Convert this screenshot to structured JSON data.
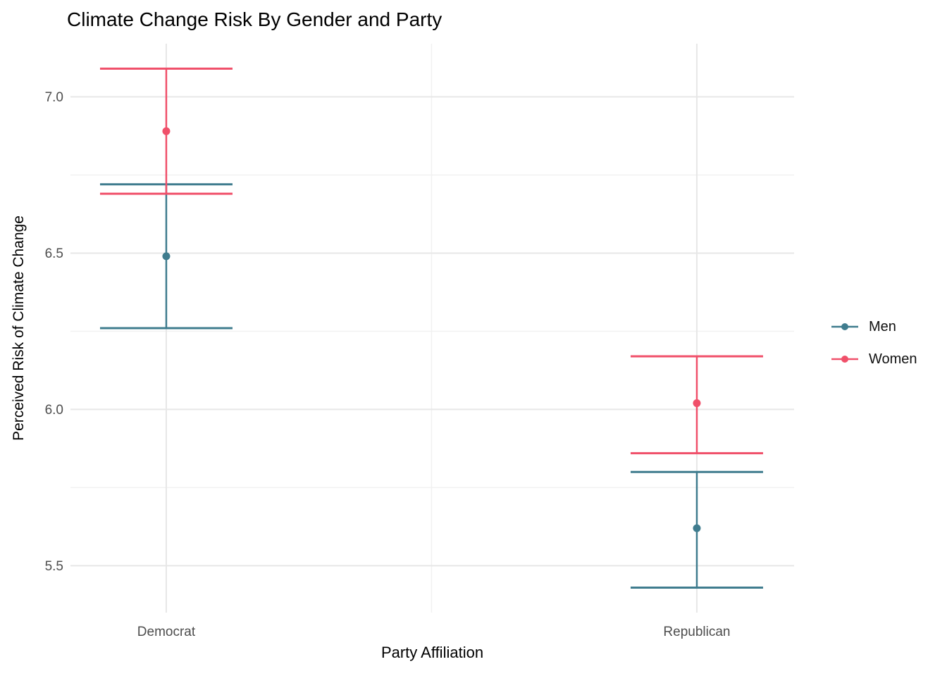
{
  "chart_data": {
    "type": "pointrange",
    "title": "Climate Change Risk By Gender and Party",
    "xlabel": "Party Affiliation",
    "ylabel": "Perceived Risk of Climate Change",
    "categories": [
      "Democrat",
      "Republican"
    ],
    "series": [
      {
        "name": "Men",
        "color": "#3f7c8e",
        "means": [
          6.49,
          5.62
        ],
        "lower": [
          6.26,
          5.43
        ],
        "upper": [
          6.72,
          5.8
        ]
      },
      {
        "name": "Women",
        "color": "#f0506a",
        "means": [
          6.89,
          6.02
        ],
        "lower": [
          6.69,
          5.86
        ],
        "upper": [
          7.09,
          6.17
        ]
      }
    ],
    "ylim": [
      5.35,
      7.17
    ],
    "y_ticks": [
      5.5,
      6.0,
      6.5,
      7.0
    ],
    "y_tick_labels": [
      "5.5",
      "6.0",
      "6.5",
      "7.0"
    ],
    "y_minor_ticks": [
      5.75,
      6.25,
      6.75
    ],
    "grid": true,
    "legend_position": "right",
    "colors": {
      "grid_major": "#e7e7e7",
      "grid_minor": "#f1f1f1",
      "tick_label": "#4d4d4d",
      "text": "#000000"
    }
  }
}
